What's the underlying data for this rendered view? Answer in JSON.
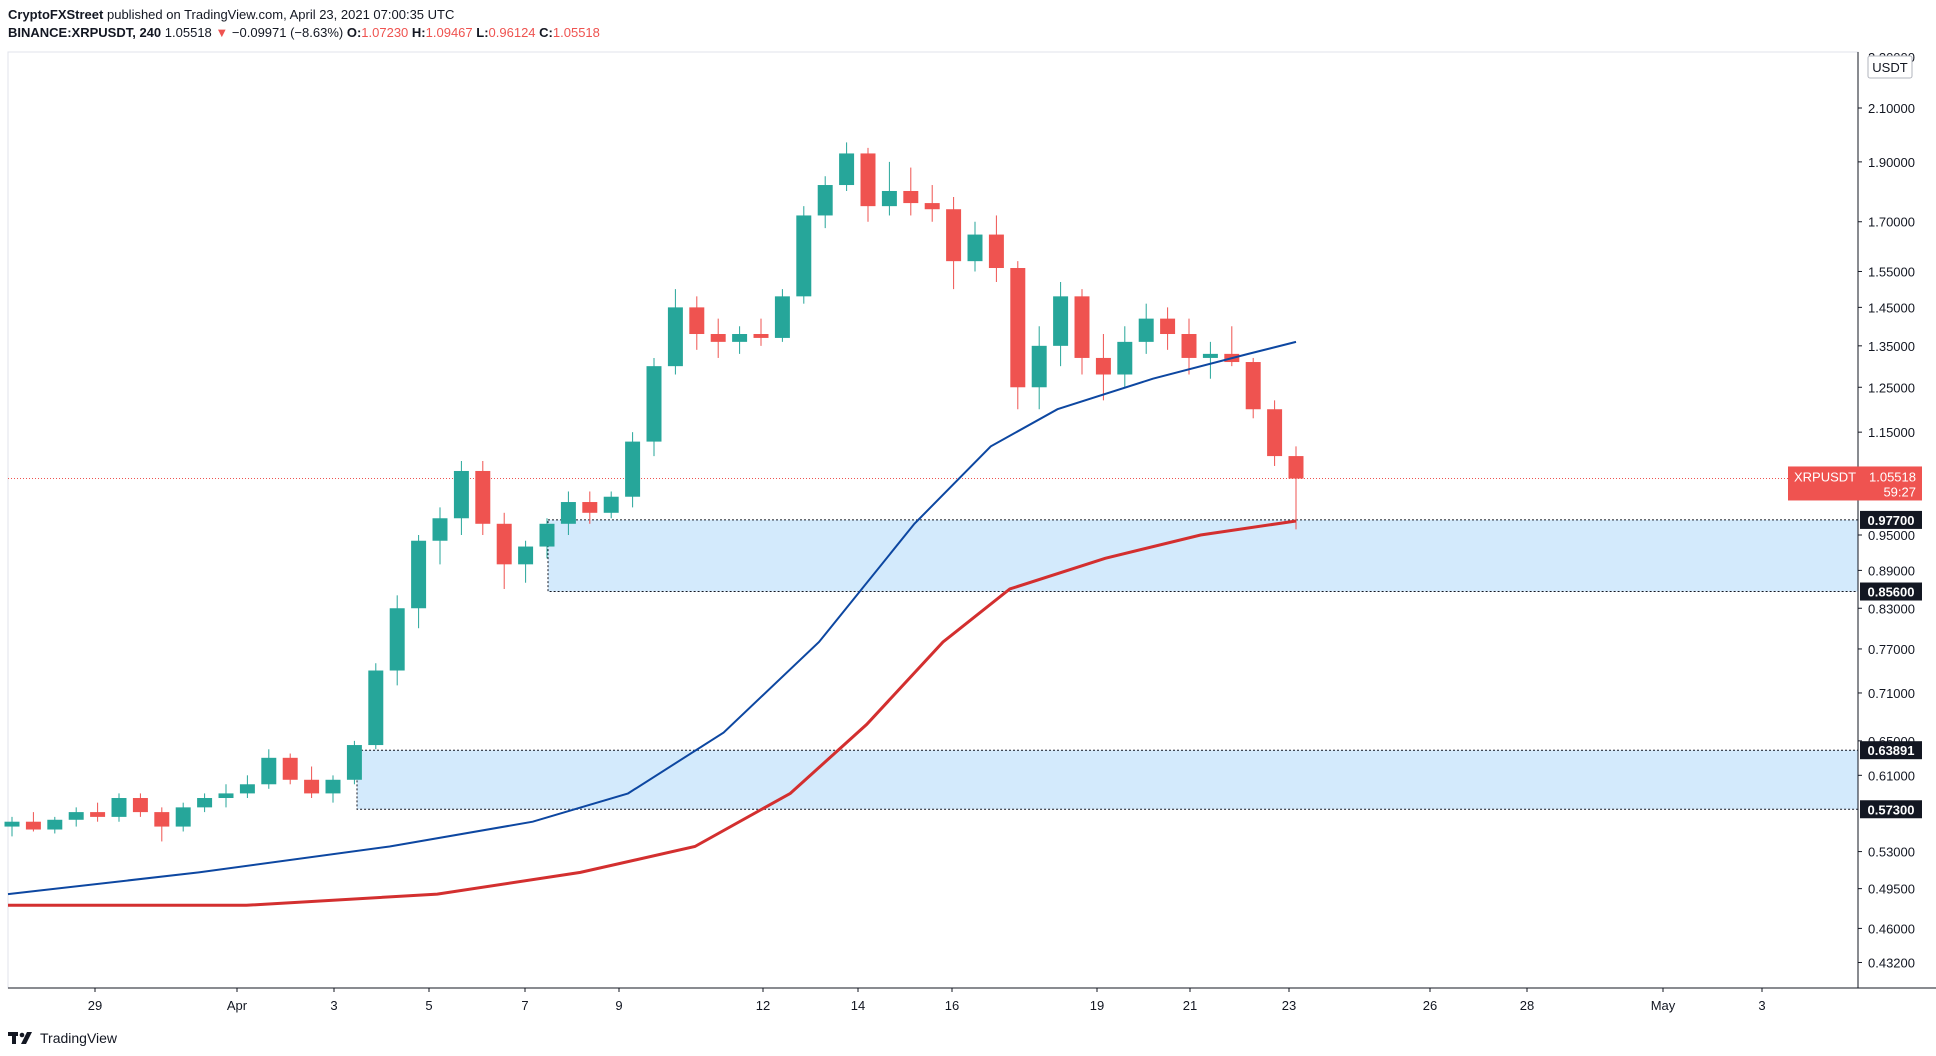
{
  "header": {
    "publisher": "CryptoFXStreet",
    "published_text": "published on TradingView.com, April 23, 2021 07:00:35 UTC",
    "symbol_text": "BINANCE:XRPUSDT, 240",
    "last": "1.05518",
    "change_text": "−0.09971 (−8.63%)",
    "o_label": "O:",
    "o_value": "1.07230",
    "h_label": "H:",
    "h_value": "1.09467",
    "l_label": "L:",
    "l_value": "0.96124",
    "c_label": "C:",
    "c_value": "1.05518"
  },
  "footer": {
    "brand": "TradingView"
  },
  "colors": {
    "up": "#26a69a",
    "down": "#ef5350",
    "ma_fast": "#0d47a1",
    "ma_slow": "#d32f2f",
    "zone_fill": "#bbdefb",
    "axis_text": "#131722"
  },
  "chart_data": {
    "type": "candlestick",
    "symbol": "XRPUSDT",
    "exchange": "BINANCE",
    "timeframe": "240",
    "currency_label": "USDT",
    "ylim": [
      0.4,
      2.3
    ],
    "y_scale": "log",
    "x_ticks": [
      "29",
      "Apr",
      "3",
      "5",
      "7",
      "9",
      "12",
      "14",
      "16",
      "19",
      "21",
      "23",
      "26",
      "28",
      "May",
      "3"
    ],
    "y_ticks": [
      "2.10000",
      "1.90000",
      "1.70000",
      "1.55000",
      "1.45000",
      "1.35000",
      "1.25000",
      "1.15000",
      "0.95000",
      "0.89000",
      "0.83000",
      "0.77000",
      "0.71000",
      "0.65000",
      "0.61000",
      "0.53000",
      "0.49500",
      "0.46000",
      "0.43200"
    ],
    "y_ticks_top_partial": "2.30000",
    "price_label": {
      "symbol": "XRPUSDT",
      "value": "1.05518",
      "countdown": "59:27"
    },
    "zones": [
      {
        "top": 0.977,
        "bottom": 0.856,
        "top_label": "0.97700",
        "bottom_label": "0.85600"
      },
      {
        "top": 0.63891,
        "bottom": 0.573,
        "top_label": "0.63891",
        "bottom_label": "0.57300"
      }
    ],
    "ma_fast": [
      [
        0.49,
        0
      ],
      [
        0.51,
        20
      ],
      [
        0.535,
        40
      ],
      [
        0.56,
        55
      ],
      [
        0.59,
        65
      ],
      [
        0.66,
        75
      ],
      [
        0.78,
        85
      ],
      [
        0.97,
        95
      ],
      [
        1.12,
        103
      ],
      [
        1.2,
        110
      ],
      [
        1.27,
        120
      ],
      [
        1.33,
        130
      ],
      [
        1.36,
        135
      ]
    ],
    "ma_slow": [
      [
        0.48,
        0
      ],
      [
        0.48,
        25
      ],
      [
        0.49,
        45
      ],
      [
        0.51,
        60
      ],
      [
        0.535,
        72
      ],
      [
        0.59,
        82
      ],
      [
        0.67,
        90
      ],
      [
        0.78,
        98
      ],
      [
        0.86,
        105
      ],
      [
        0.91,
        115
      ],
      [
        0.95,
        125
      ],
      [
        0.975,
        135
      ]
    ],
    "candles_ohlc": [
      [
        0.555,
        0.565,
        0.545,
        0.56
      ],
      [
        0.56,
        0.57,
        0.55,
        0.552
      ],
      [
        0.552,
        0.565,
        0.548,
        0.562
      ],
      [
        0.562,
        0.575,
        0.555,
        0.57
      ],
      [
        0.57,
        0.58,
        0.56,
        0.565
      ],
      [
        0.565,
        0.59,
        0.56,
        0.585
      ],
      [
        0.585,
        0.59,
        0.565,
        0.57
      ],
      [
        0.57,
        0.575,
        0.54,
        0.555
      ],
      [
        0.555,
        0.58,
        0.55,
        0.575
      ],
      [
        0.575,
        0.59,
        0.57,
        0.585
      ],
      [
        0.585,
        0.6,
        0.575,
        0.59
      ],
      [
        0.59,
        0.61,
        0.585,
        0.6
      ],
      [
        0.6,
        0.64,
        0.595,
        0.63
      ],
      [
        0.63,
        0.635,
        0.6,
        0.605
      ],
      [
        0.605,
        0.62,
        0.585,
        0.59
      ],
      [
        0.59,
        0.61,
        0.58,
        0.605
      ],
      [
        0.605,
        0.65,
        0.6,
        0.645
      ],
      [
        0.645,
        0.75,
        0.64,
        0.74
      ],
      [
        0.74,
        0.85,
        0.72,
        0.83
      ],
      [
        0.83,
        0.95,
        0.8,
        0.94
      ],
      [
        0.94,
        1.0,
        0.9,
        0.98
      ],
      [
        0.98,
        1.09,
        0.95,
        1.07
      ],
      [
        1.07,
        1.09,
        0.95,
        0.97
      ],
      [
        0.97,
        0.99,
        0.86,
        0.9
      ],
      [
        0.9,
        0.94,
        0.87,
        0.93
      ],
      [
        0.93,
        0.98,
        0.91,
        0.97
      ],
      [
        0.97,
        1.03,
        0.95,
        1.01
      ],
      [
        1.01,
        1.03,
        0.97,
        0.99
      ],
      [
        0.99,
        1.03,
        0.98,
        1.02
      ],
      [
        1.02,
        1.15,
        1.0,
        1.13
      ],
      [
        1.13,
        1.32,
        1.1,
        1.3
      ],
      [
        1.3,
        1.5,
        1.28,
        1.45
      ],
      [
        1.45,
        1.48,
        1.34,
        1.38
      ],
      [
        1.38,
        1.42,
        1.32,
        1.36
      ],
      [
        1.36,
        1.4,
        1.33,
        1.38
      ],
      [
        1.38,
        1.42,
        1.35,
        1.37
      ],
      [
        1.37,
        1.5,
        1.36,
        1.48
      ],
      [
        1.48,
        1.75,
        1.46,
        1.72
      ],
      [
        1.72,
        1.85,
        1.68,
        1.82
      ],
      [
        1.82,
        1.97,
        1.8,
        1.93
      ],
      [
        1.93,
        1.95,
        1.7,
        1.75
      ],
      [
        1.75,
        1.9,
        1.72,
        1.8
      ],
      [
        1.8,
        1.88,
        1.72,
        1.76
      ],
      [
        1.76,
        1.82,
        1.7,
        1.74
      ],
      [
        1.74,
        1.78,
        1.5,
        1.58
      ],
      [
        1.58,
        1.7,
        1.55,
        1.66
      ],
      [
        1.66,
        1.72,
        1.52,
        1.56
      ],
      [
        1.56,
        1.58,
        1.2,
        1.25
      ],
      [
        1.25,
        1.4,
        1.2,
        1.35
      ],
      [
        1.35,
        1.52,
        1.3,
        1.48
      ],
      [
        1.48,
        1.5,
        1.28,
        1.32
      ],
      [
        1.32,
        1.38,
        1.22,
        1.28
      ],
      [
        1.28,
        1.4,
        1.25,
        1.36
      ],
      [
        1.36,
        1.46,
        1.33,
        1.42
      ],
      [
        1.42,
        1.45,
        1.34,
        1.38
      ],
      [
        1.38,
        1.42,
        1.28,
        1.32
      ],
      [
        1.32,
        1.36,
        1.27,
        1.33
      ],
      [
        1.33,
        1.4,
        1.3,
        1.31
      ],
      [
        1.31,
        1.32,
        1.18,
        1.2
      ],
      [
        1.2,
        1.22,
        1.08,
        1.1
      ],
      [
        1.1,
        1.12,
        0.96,
        1.055
      ]
    ]
  }
}
